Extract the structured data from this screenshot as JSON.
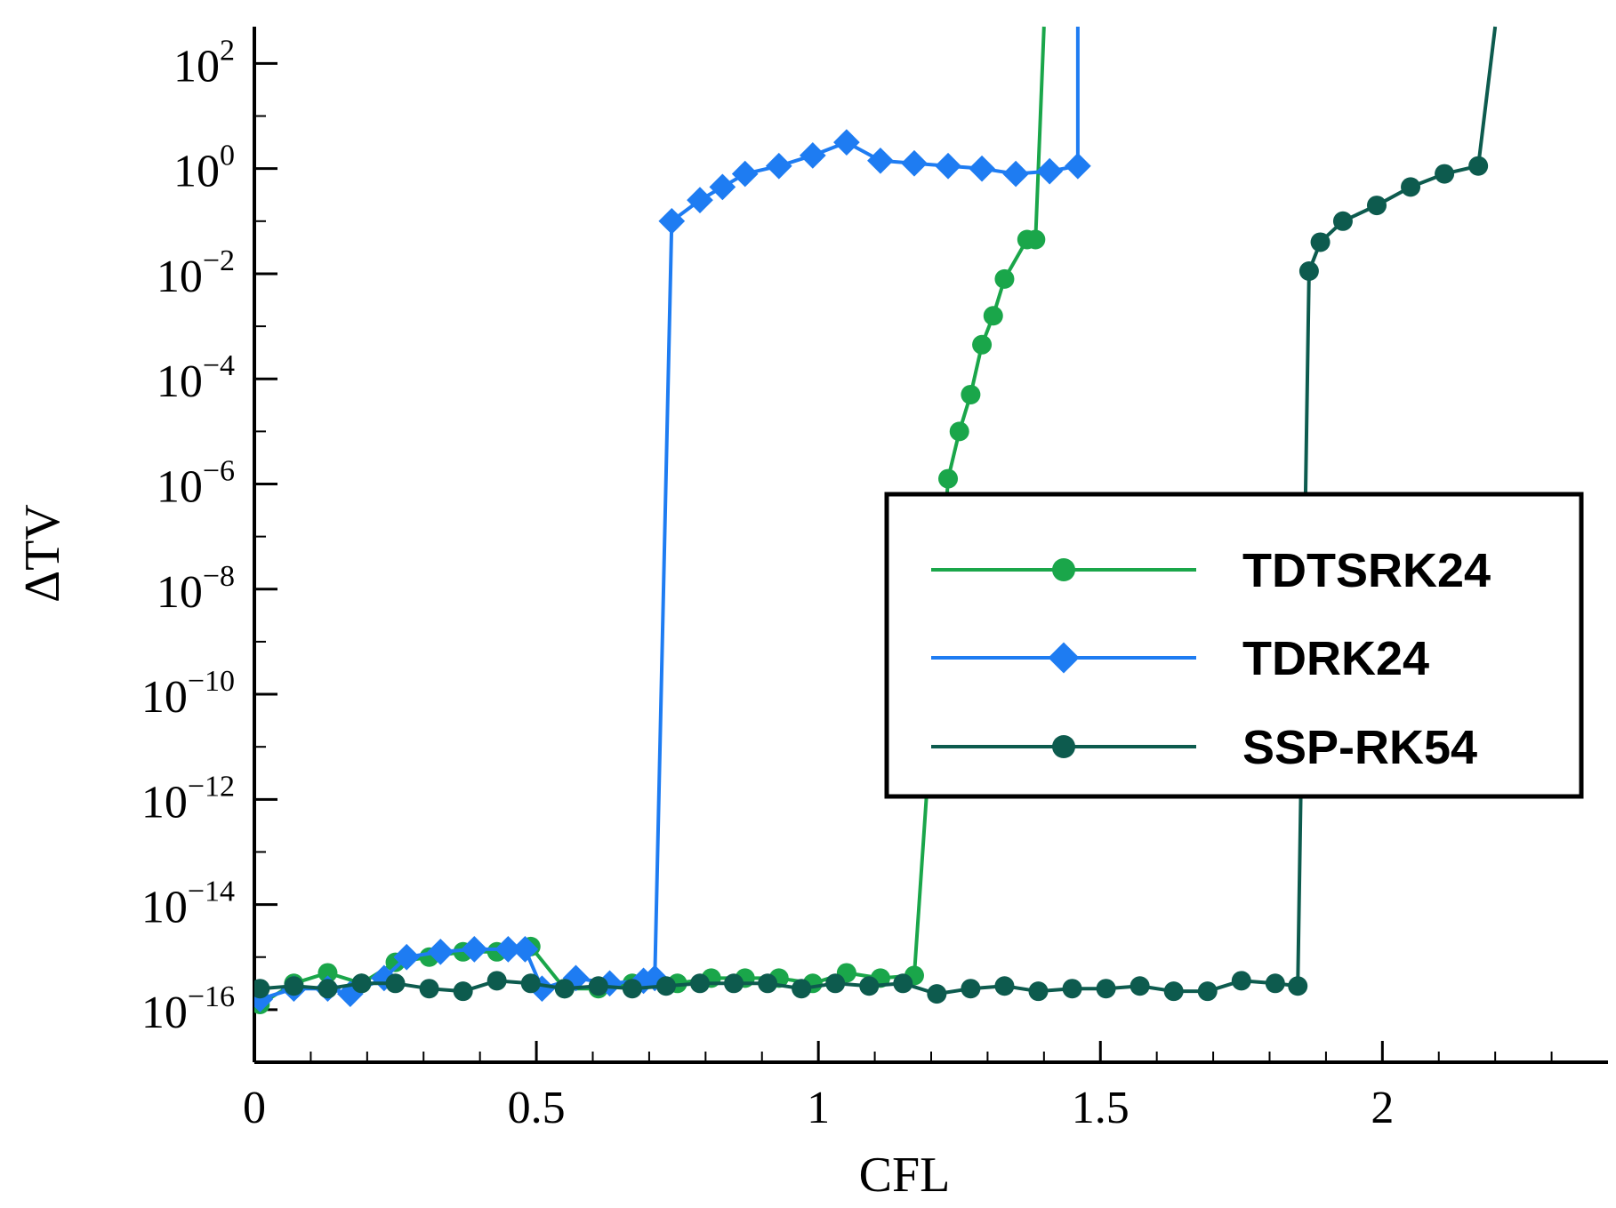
{
  "chart_data": {
    "type": "line",
    "title": "",
    "xlabel": "CFL",
    "ylabel": "ΔTV",
    "xlim": [
      0,
      2.4
    ],
    "ylim_log10": [
      -17,
      2.7
    ],
    "x_ticks": [
      {
        "value": 0,
        "label": "0"
      },
      {
        "value": 0.5,
        "label": "0.5"
      },
      {
        "value": 1,
        "label": "1"
      },
      {
        "value": 1.5,
        "label": "1.5"
      },
      {
        "value": 2,
        "label": "2"
      }
    ],
    "y_ticks": [
      {
        "exp": 2,
        "label": "10",
        "sup": "2"
      },
      {
        "exp": 0,
        "label": "10",
        "sup": "0"
      },
      {
        "exp": -2,
        "label": "10",
        "sup": "−2"
      },
      {
        "exp": -4,
        "label": "10",
        "sup": "−4"
      },
      {
        "exp": -6,
        "label": "10",
        "sup": "−6"
      },
      {
        "exp": -8,
        "label": "10",
        "sup": "−8"
      },
      {
        "exp": -10,
        "label": "10",
        "sup": "−10"
      },
      {
        "exp": -12,
        "label": "10",
        "sup": "−12"
      },
      {
        "exp": -14,
        "label": "10",
        "sup": "−14"
      },
      {
        "exp": -16,
        "label": "10",
        "sup": "−16"
      }
    ],
    "legend": {
      "placement": "right"
    },
    "series": [
      {
        "name": "TDTSRK24",
        "color": "#1aa64a",
        "marker": "circle",
        "x": [
          0.01,
          0.07,
          0.13,
          0.19,
          0.25,
          0.31,
          0.37,
          0.43,
          0.49,
          0.55,
          0.61,
          0.67,
          0.75,
          0.81,
          0.87,
          0.93,
          0.99,
          1.05,
          1.11,
          1.17,
          1.23,
          1.25,
          1.27,
          1.29,
          1.31,
          1.33,
          1.37,
          1.385,
          1.4
        ],
        "log10_y": [
          -15.9,
          -15.5,
          -15.3,
          -15.5,
          -15.1,
          -15.0,
          -14.9,
          -14.9,
          -14.8,
          -15.6,
          -15.6,
          -15.5,
          -15.5,
          -15.4,
          -15.4,
          -15.4,
          -15.5,
          -15.3,
          -15.4,
          -15.35,
          -5.9,
          -5.0,
          -4.3,
          -3.35,
          -2.8,
          -2.1,
          -1.35,
          -1.35,
          2.7
        ]
      },
      {
        "name": "TDRK24",
        "color": "#1e7cf2",
        "marker": "diamond",
        "x": [
          0.01,
          0.07,
          0.13,
          0.17,
          0.23,
          0.27,
          0.33,
          0.39,
          0.45,
          0.48,
          0.51,
          0.57,
          0.63,
          0.69,
          0.71,
          0.74,
          0.79,
          0.83,
          0.87,
          0.93,
          0.99,
          1.05,
          1.11,
          1.17,
          1.23,
          1.29,
          1.35,
          1.41,
          1.46,
          1.46
        ],
        "log10_y": [
          -15.8,
          -15.6,
          -15.6,
          -15.7,
          -15.4,
          -15.0,
          -14.9,
          -14.85,
          -14.85,
          -14.85,
          -15.6,
          -15.4,
          -15.5,
          -15.45,
          -15.4,
          -1.0,
          -0.6,
          -0.35,
          -0.1,
          0.05,
          0.25,
          0.5,
          0.15,
          0.1,
          0.05,
          0.0,
          -0.1,
          -0.05,
          0.05,
          2.7
        ]
      },
      {
        "name": "SSP-RK54",
        "color": "#0d5b4e",
        "marker": "circle",
        "x": [
          0.01,
          0.07,
          0.13,
          0.19,
          0.25,
          0.31,
          0.37,
          0.43,
          0.49,
          0.55,
          0.61,
          0.67,
          0.73,
          0.79,
          0.85,
          0.91,
          0.97,
          1.03,
          1.09,
          1.15,
          1.21,
          1.27,
          1.33,
          1.39,
          1.45,
          1.51,
          1.57,
          1.63,
          1.69,
          1.75,
          1.81,
          1.85,
          1.87,
          1.89,
          1.93,
          1.99,
          2.05,
          2.11,
          2.17,
          2.2
        ],
        "log10_y": [
          -15.6,
          -15.55,
          -15.6,
          -15.5,
          -15.5,
          -15.6,
          -15.65,
          -15.45,
          -15.5,
          -15.6,
          -15.55,
          -15.6,
          -15.55,
          -15.5,
          -15.5,
          -15.5,
          -15.6,
          -15.5,
          -15.55,
          -15.5,
          -15.7,
          -15.6,
          -15.55,
          -15.65,
          -15.6,
          -15.6,
          -15.55,
          -15.65,
          -15.65,
          -15.45,
          -15.5,
          -15.55,
          -1.95,
          -1.4,
          -1.0,
          -0.7,
          -0.35,
          -0.1,
          0.05,
          2.7
        ]
      }
    ]
  }
}
